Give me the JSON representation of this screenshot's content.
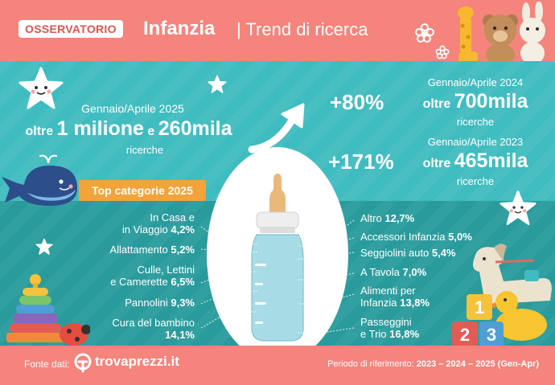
{
  "header": {
    "badge": "OSSERVATORIO",
    "title": "Infanzia",
    "subtitle": "| Trend di ricerca"
  },
  "stats": {
    "left": {
      "period": "Gennaio/Aprile 2025",
      "prefix": "oltre",
      "value_a": "1 milione",
      "connector": "e",
      "value_b": "260mila",
      "unit": "ricerche"
    },
    "right_top": {
      "period": "Gennaio/Aprile 2024",
      "prefix": "oltre",
      "value": "700mila",
      "unit": "ricerche"
    },
    "right_bottom": {
      "period": "Gennaio/Aprile 2023",
      "prefix": "oltre",
      "value": "465mila",
      "unit": "ricerche"
    },
    "growth_a": "+80%",
    "growth_b": "+171%"
  },
  "top_categories_label": "Top categorie 2025",
  "categories_left": [
    {
      "line1": "In Casa e",
      "line2": "in Viaggio",
      "pct": "4,2%"
    },
    {
      "line1": "",
      "line2": "Allattamento",
      "pct": "5,2%"
    },
    {
      "line1": "Culle, Lettini",
      "line2": "e Camerette",
      "pct": "6,5%"
    },
    {
      "line1": "",
      "line2": "Pannolini",
      "pct": "9,3%"
    },
    {
      "line1": "Cura del bambino",
      "line2": "",
      "pct": "14,1%"
    }
  ],
  "categories_right": [
    {
      "line1": "Altro",
      "pct": "12,7%",
      "line2": ""
    },
    {
      "line1": "Accessori Infanzia",
      "pct": "5,0%",
      "line2": ""
    },
    {
      "line1": "Seggiolini auto",
      "pct": "5,4%",
      "line2": ""
    },
    {
      "line1": "A Tavola",
      "pct": "7,0%",
      "line2": ""
    },
    {
      "line1": "Alimenti per",
      "line2": "Infanzia",
      "pct": "13,8%"
    },
    {
      "line1": "Passeggini",
      "line2": "e Trio",
      "pct": "16,8%"
    }
  ],
  "footer": {
    "source_label": "Fonte dati:",
    "brand": "trovaprezzi.it",
    "period_label": "Periodo di riferimento:",
    "period_value": "2023 – 2024 – 2025 (Gen-Apr)"
  },
  "colors": {
    "coral": "#f4847c",
    "teal_light": "#3fbcbf",
    "teal_dark": "#2a9b9c",
    "orange": "#f2a33a"
  }
}
